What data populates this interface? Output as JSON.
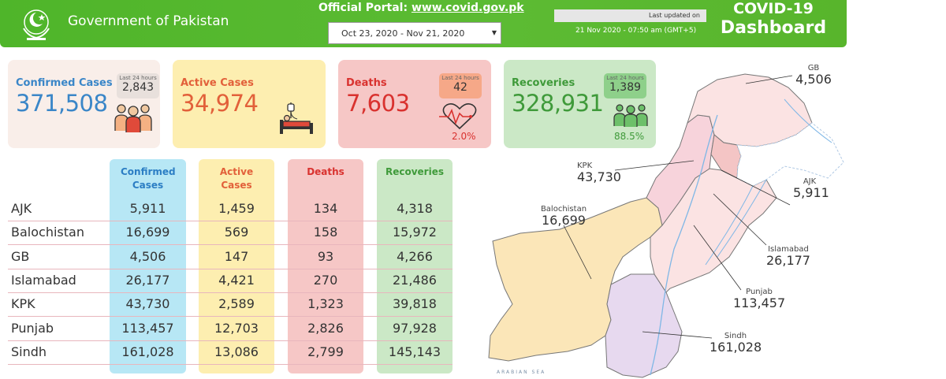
{
  "header": {
    "gov_title": "Government of Pakistan",
    "portal_label": "Official Portal:",
    "portal_url": "www.covid.gov.pk",
    "date_range": "Oct 23, 2020 - Nov 21, 2020",
    "last_updated_label": "Last updated on",
    "last_updated_value": "21 Nov 2020 - 07:50 am (GMT+5)",
    "dashboard_title_1": "COVID-19",
    "dashboard_title_2": "Dashboard",
    "colors": {
      "header_green": "#4fb52a"
    }
  },
  "summary": {
    "confirmed": {
      "label": "Confirmed Cases",
      "value": "371,508",
      "last24_label": "Last 24 hours",
      "last24_value": "2,843",
      "icon": "people-group-icon",
      "color": "#3a86c8"
    },
    "active": {
      "label": "Active Cases",
      "value": "34,974",
      "icon": "hospital-bed-icon",
      "color": "#e2603a"
    },
    "deaths": {
      "label": "Deaths",
      "value": "7,603",
      "last24_label": "Last 24 hours",
      "last24_value": "42",
      "rate": "2.0%",
      "icon": "heartbeat-icon",
      "color": "#d9322f"
    },
    "recoveries": {
      "label": "Recoveries",
      "value": "328,931",
      "last24_label": "Last 24 hours",
      "last24_value": "1,389",
      "rate": "88.5%",
      "icon": "recovered-people-icon",
      "color": "#3f9a3a"
    }
  },
  "table": {
    "headers": {
      "confirmed": "Confirmed Cases",
      "active": "Active Cases",
      "deaths": "Deaths",
      "recoveries": "Recoveries"
    },
    "rows": [
      {
        "region": "AJK",
        "confirmed": "5,911",
        "active": "1,459",
        "deaths": "134",
        "recoveries": "4,318"
      },
      {
        "region": "Balochistan",
        "confirmed": "16,699",
        "active": "569",
        "deaths": "158",
        "recoveries": "15,972"
      },
      {
        "region": "GB",
        "confirmed": "4,506",
        "active": "147",
        "deaths": "93",
        "recoveries": "4,266"
      },
      {
        "region": "Islamabad",
        "confirmed": "26,177",
        "active": "4,421",
        "deaths": "270",
        "recoveries": "21,486"
      },
      {
        "region": "KPK",
        "confirmed": "43,730",
        "active": "2,589",
        "deaths": "1,323",
        "recoveries": "39,818"
      },
      {
        "region": "Punjab",
        "confirmed": "113,457",
        "active": "12,703",
        "deaths": "2,826",
        "recoveries": "97,928"
      },
      {
        "region": "Sindh",
        "confirmed": "161,028",
        "active": "13,086",
        "deaths": "2,799",
        "recoveries": "145,143"
      }
    ]
  },
  "map": {
    "labels": {
      "gb": {
        "name": "GB",
        "value": "4,506"
      },
      "kpk": {
        "name": "KPK",
        "value": "43,730"
      },
      "ajk": {
        "name": "AJK",
        "value": "5,911"
      },
      "balochistan": {
        "name": "Balochistan",
        "value": "16,699"
      },
      "islamabad": {
        "name": "Islamabad",
        "value": "26,177"
      },
      "punjab": {
        "name": "Punjab",
        "value": "113,457"
      },
      "sindh": {
        "name": "Sindh",
        "value": "161,028"
      }
    },
    "sea_label": "ARABIAN SEA"
  }
}
